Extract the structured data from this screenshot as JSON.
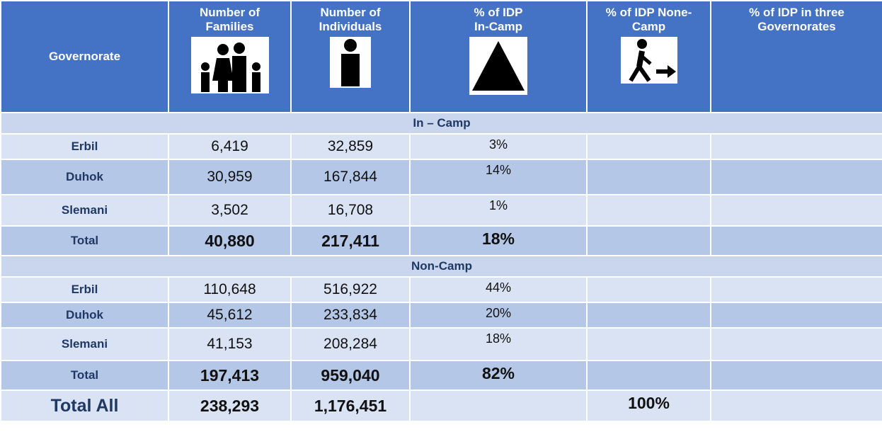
{
  "header": {
    "columns": [
      "Governorate",
      "Number of Families",
      "Number of Individuals",
      "% of IDP In-Camp",
      "% of IDP None- Camp",
      "% of IDP in three Governorates"
    ]
  },
  "sections": [
    {
      "title": "In – Camp",
      "rows": [
        [
          "Erbil",
          "6,419",
          "32,859",
          "3%"
        ],
        [
          "Duhok",
          "30,959",
          "167,844",
          "14%"
        ],
        [
          "Slemani",
          "3,502",
          "16,708",
          "1%"
        ],
        [
          "Total",
          "40,880",
          "217,411",
          "18%"
        ]
      ]
    },
    {
      "title": "Non-Camp",
      "rows": [
        [
          "Erbil",
          "110,648",
          "516,922",
          "44%"
        ],
        [
          "Duhok",
          "45,612",
          "233,834",
          "20%"
        ],
        [
          "Slemani",
          "41,153",
          "208,284",
          "18%"
        ],
        [
          "Total",
          "197,413",
          "959,040",
          "82%"
        ]
      ]
    }
  ],
  "total_all": {
    "label": "Total All",
    "families": "238,293",
    "individuals": "1,176,451",
    "none_camp": "100%"
  }
}
